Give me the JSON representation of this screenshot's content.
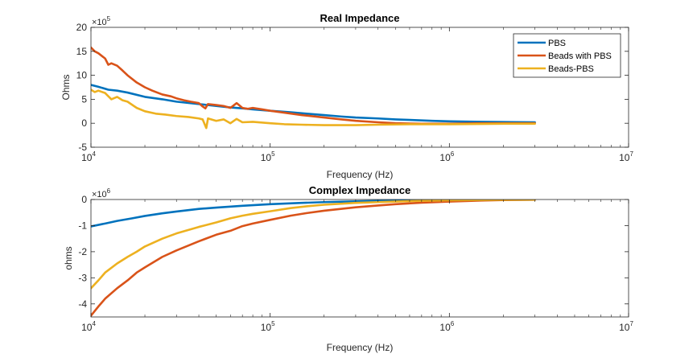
{
  "chart_data": [
    {
      "type": "line",
      "title": "Real Impedance",
      "xlabel": "Frequency (Hz)",
      "ylabel": "Ohms",
      "xscale": "log",
      "xlim": [
        10000,
        10000000
      ],
      "ylim": [
        -5,
        20
      ],
      "y_multiplier": "×10",
      "y_multiplier_exp": "5",
      "xtick_base": "10",
      "xticks": [
        {
          "value": 10000,
          "exp": "4"
        },
        {
          "value": 100000,
          "exp": "5"
        },
        {
          "value": 1000000,
          "exp": "6"
        },
        {
          "value": 10000000,
          "exp": "7"
        }
      ],
      "yticks": [
        {
          "value": -5,
          "label": "-5"
        },
        {
          "value": 0,
          "label": "0"
        },
        {
          "value": 5,
          "label": "5"
        },
        {
          "value": 10,
          "label": "10"
        },
        {
          "value": 15,
          "label": "15"
        },
        {
          "value": 20,
          "label": "20"
        }
      ],
      "grid": false,
      "legend": "top-right",
      "series": [
        {
          "name": "PBS",
          "color": "#0072BD",
          "x": [
            10000,
            11000,
            12500,
            14000,
            16000,
            20000,
            25000,
            30000,
            40000,
            50000,
            60000,
            70000,
            80000,
            100000,
            130000,
            160000,
            200000,
            250000,
            300000,
            400000,
            500000,
            600000,
            800000,
            1000000,
            1500000,
            2000000,
            3000000
          ],
          "values": [
            8.0,
            7.6,
            7.0,
            6.8,
            6.4,
            5.5,
            5.0,
            4.5,
            4.0,
            3.6,
            3.3,
            3.1,
            2.9,
            2.6,
            2.3,
            2.0,
            1.7,
            1.4,
            1.2,
            1.0,
            0.8,
            0.7,
            0.5,
            0.4,
            0.3,
            0.25,
            0.2
          ]
        },
        {
          "name": "Beads with PBS",
          "color": "#D95319",
          "x": [
            10000,
            10500,
            11000,
            12000,
            12500,
            13000,
            14000,
            15000,
            16000,
            18000,
            20000,
            22000,
            25000,
            28000,
            30000,
            33000,
            36000,
            40000,
            42000,
            43500,
            45000,
            50000,
            55000,
            60000,
            65000,
            70000,
            75000,
            80000,
            90000,
            100000,
            120000,
            150000,
            200000,
            250000,
            300000,
            400000,
            500000,
            700000,
            1000000,
            1500000,
            2000000,
            3000000
          ],
          "values": [
            15.8,
            15.0,
            14.6,
            13.5,
            12.2,
            12.5,
            12.0,
            11.0,
            10.0,
            8.5,
            7.5,
            6.8,
            6.0,
            5.6,
            5.2,
            4.8,
            4.5,
            4.2,
            3.5,
            3.1,
            4.0,
            3.8,
            3.6,
            3.2,
            4.2,
            3.2,
            3.0,
            3.2,
            2.9,
            2.6,
            2.2,
            1.7,
            1.2,
            0.8,
            0.5,
            0.2,
            0.0,
            -0.1,
            -0.1,
            0.0,
            0.0,
            0.0
          ]
        },
        {
          "name": "Beads-PBS",
          "color": "#EDB120",
          "x": [
            10000,
            10500,
            11000,
            12000,
            13000,
            14000,
            15000,
            16000,
            18000,
            20000,
            23000,
            26000,
            30000,
            35000,
            40000,
            42000,
            44000,
            45000,
            50000,
            55000,
            60000,
            65000,
            70000,
            80000,
            100000,
            120000,
            150000,
            200000,
            300000,
            400000,
            600000,
            1000000,
            2000000,
            3000000
          ],
          "values": [
            7.0,
            6.5,
            6.8,
            6.3,
            5.0,
            5.5,
            4.8,
            4.5,
            3.2,
            2.5,
            2.0,
            1.8,
            1.5,
            1.3,
            1.0,
            0.8,
            -1.0,
            1.0,
            0.5,
            0.8,
            0.0,
            0.9,
            0.2,
            0.3,
            0.0,
            -0.2,
            -0.3,
            -0.4,
            -0.4,
            -0.3,
            -0.2,
            -0.2,
            -0.1,
            -0.1
          ]
        }
      ]
    },
    {
      "type": "line",
      "title": "Complex Impedance",
      "xlabel": "Frequency (Hz)",
      "ylabel": "ohms",
      "xscale": "log",
      "xlim": [
        10000,
        10000000
      ],
      "ylim": [
        -4.5,
        0
      ],
      "y_multiplier": "×10",
      "y_multiplier_exp": "6",
      "xtick_base": "10",
      "xticks": [
        {
          "value": 10000,
          "exp": "4"
        },
        {
          "value": 100000,
          "exp": "5"
        },
        {
          "value": 1000000,
          "exp": "6"
        },
        {
          "value": 10000000,
          "exp": "7"
        }
      ],
      "yticks": [
        {
          "value": -4,
          "label": "-4"
        },
        {
          "value": -3,
          "label": "-3"
        },
        {
          "value": -2,
          "label": "-2"
        },
        {
          "value": -1,
          "label": "-1"
        },
        {
          "value": 0,
          "label": "0"
        }
      ],
      "grid": false,
      "series": [
        {
          "name": "PBS",
          "color": "#0072BD",
          "x": [
            10000,
            12000,
            14000,
            17000,
            20000,
            25000,
            30000,
            40000,
            50000,
            70000,
            100000,
            150000,
            200000,
            300000,
            500000,
            700000,
            1000000,
            2000000,
            3000000
          ],
          "values": [
            -1.03,
            -0.92,
            -0.82,
            -0.72,
            -0.63,
            -0.53,
            -0.46,
            -0.36,
            -0.31,
            -0.24,
            -0.18,
            -0.13,
            -0.1,
            -0.07,
            -0.04,
            -0.03,
            -0.02,
            -0.01,
            -0.005
          ]
        },
        {
          "name": "Beads with PBS",
          "color": "#D95319",
          "x": [
            10000,
            11000,
            12000,
            14000,
            16000,
            18000,
            20000,
            25000,
            30000,
            40000,
            50000,
            60000,
            70000,
            80000,
            100000,
            130000,
            160000,
            200000,
            300000,
            400000,
            500000,
            700000,
            1000000,
            1500000,
            2000000,
            3000000
          ],
          "values": [
            -4.45,
            -4.1,
            -3.8,
            -3.4,
            -3.1,
            -2.8,
            -2.6,
            -2.2,
            -1.95,
            -1.6,
            -1.35,
            -1.2,
            -1.02,
            -0.92,
            -0.78,
            -0.62,
            -0.52,
            -0.43,
            -0.3,
            -0.23,
            -0.18,
            -0.12,
            -0.08,
            -0.04,
            -0.02,
            -0.01
          ]
        },
        {
          "name": "Beads-PBS",
          "color": "#EDB120",
          "x": [
            10000,
            11000,
            12000,
            14000,
            16000,
            18000,
            20000,
            25000,
            30000,
            40000,
            50000,
            60000,
            70000,
            80000,
            100000,
            130000,
            160000,
            200000,
            300000,
            400000,
            500000,
            700000,
            1000000,
            2000000,
            3000000
          ],
          "values": [
            -3.4,
            -3.1,
            -2.8,
            -2.45,
            -2.2,
            -2.0,
            -1.8,
            -1.5,
            -1.3,
            -1.05,
            -0.88,
            -0.72,
            -0.62,
            -0.55,
            -0.45,
            -0.33,
            -0.26,
            -0.2,
            -0.13,
            -0.1,
            -0.08,
            -0.05,
            -0.03,
            -0.01,
            -0.005
          ]
        }
      ]
    }
  ]
}
